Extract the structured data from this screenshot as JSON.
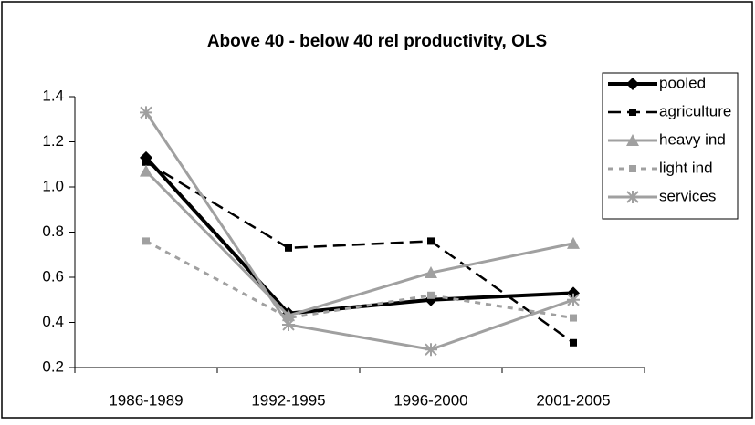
{
  "chart_data": {
    "type": "line",
    "title": "Above 40 - below 40 rel productivity, OLS",
    "categories": [
      "1986-1989",
      "1992-1995",
      "1996-2000",
      "2001-2005"
    ],
    "ylim": [
      0.2,
      1.4
    ],
    "yticks": [
      0.2,
      0.4,
      0.6,
      0.8,
      {
        "value": 1,
        "label": "1.0"
      },
      1.2,
      1.4
    ],
    "legend": "top-right",
    "series": [
      {
        "name": "pooled",
        "color": "#000000",
        "marker": "diamond",
        "dash": "solid",
        "line_width": 4,
        "values": [
          1.13,
          0.44,
          0.5,
          0.53
        ]
      },
      {
        "name": "agriculture",
        "color": "#000000",
        "marker": "square",
        "dash": "dashed",
        "line_width": 2.5,
        "values": [
          1.11,
          0.73,
          0.76,
          0.31
        ]
      },
      {
        "name": "heavy ind",
        "color": "#a0a0a0",
        "marker": "triangle",
        "dash": "solid",
        "line_width": 3,
        "values": [
          1.07,
          0.43,
          0.62,
          0.75
        ]
      },
      {
        "name": "light ind",
        "color": "#a0a0a0",
        "marker": "square",
        "dash": "dotted",
        "line_width": 3,
        "values": [
          0.76,
          0.42,
          0.52,
          0.42
        ]
      },
      {
        "name": "services",
        "color": "#a0a0a0",
        "marker": "star",
        "dash": "solid",
        "line_width": 3,
        "values": [
          1.33,
          0.39,
          0.28,
          0.5
        ]
      }
    ]
  }
}
